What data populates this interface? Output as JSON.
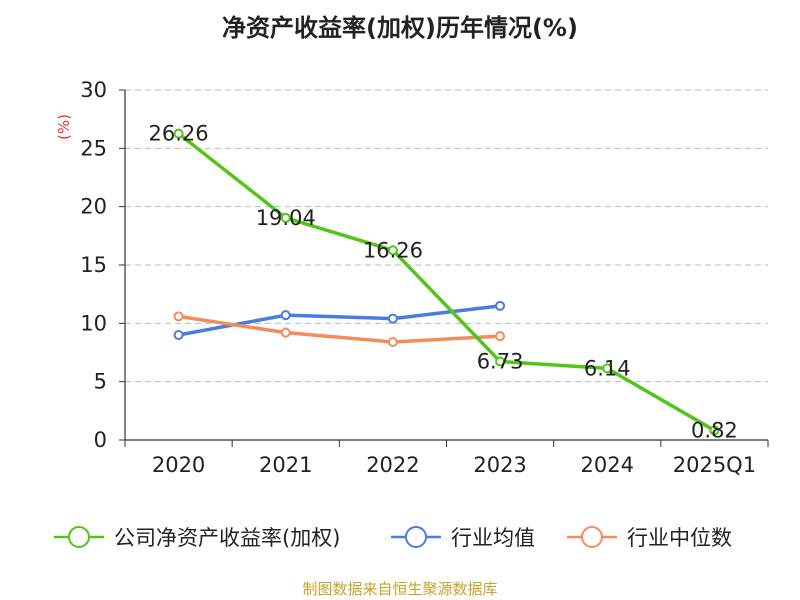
{
  "title": "净资产收益率(加权)历年情况(%)",
  "source": "制图数据来自恒生聚源数据库",
  "colors": {
    "company": "#52c41a",
    "average": "#4a7be0",
    "median": "#f58b5c",
    "unit": "#e8312f",
    "grid": "#bbbbbb",
    "axis": "#333333"
  },
  "chart_data": {
    "type": "line",
    "title": "净资产收益率(加权)历年情况(%)",
    "ylabel": "(%)",
    "xlabel": "",
    "ylim": [
      0,
      30
    ],
    "yticks": [
      0,
      5,
      10,
      15,
      20,
      25,
      30
    ],
    "grid": true,
    "legend": "bottom",
    "categories": [
      "2020",
      "2021",
      "2022",
      "2023",
      "2024",
      "2025Q1"
    ],
    "series": [
      {
        "name": "公司净资产收益率(加权)",
        "values": [
          26.26,
          19.04,
          16.26,
          6.73,
          6.14,
          0.82
        ],
        "labels": [
          "26.26",
          "19.04",
          "16.26",
          "6.73",
          "6.14",
          "0.82"
        ],
        "color": "#52c41a"
      },
      {
        "name": "行业均值",
        "values": [
          9.0,
          10.7,
          10.4,
          11.5,
          null,
          null
        ],
        "color": "#4a7be0"
      },
      {
        "name": "行业中位数",
        "values": [
          10.6,
          9.2,
          8.4,
          8.9,
          null,
          null
        ],
        "color": "#f58b5c"
      }
    ]
  }
}
